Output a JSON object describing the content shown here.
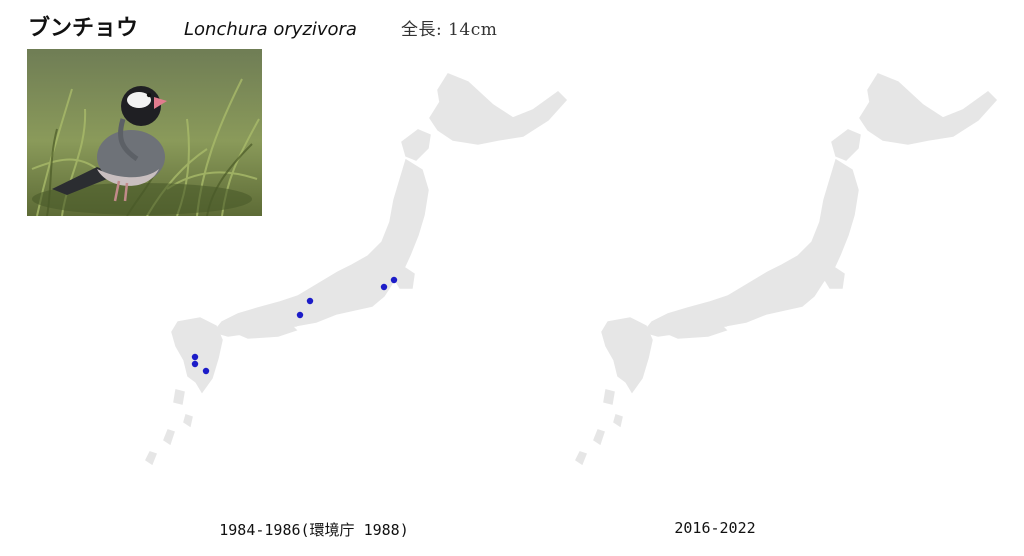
{
  "species": {
    "japanese_name": "ブンチョウ",
    "scientific_name": "Lonchura oryzivora",
    "length_text": "全長: 14cm"
  },
  "photo": {
    "subject": "java-sparrow-in-grass"
  },
  "colors": {
    "land": "#e6e6e6",
    "dot": "#1c1cc8",
    "background": "#ffffff"
  },
  "maps": [
    {
      "caption": "1984-1986(環境庁 1988)",
      "records": [
        {
          "region": "Kanto-east"
        },
        {
          "region": "Kanto-west"
        },
        {
          "region": "Kinki-north"
        },
        {
          "region": "Kinki-south"
        },
        {
          "region": "Kyushu-north-1"
        },
        {
          "region": "Kyushu-north-2"
        },
        {
          "region": "Kyushu-south"
        }
      ]
    },
    {
      "caption": "2016-2022",
      "records": []
    }
  ]
}
